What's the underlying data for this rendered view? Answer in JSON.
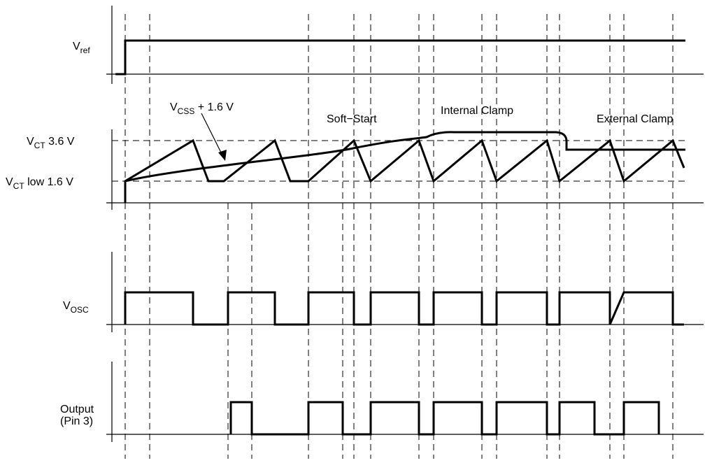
{
  "labels": {
    "vref_main": "V",
    "vref_sub": "ref",
    "vct36_main": "V",
    "vct36_sub": "CT",
    "vct36_rest": " 3.6 V",
    "vctlow_main": "V",
    "vctlow_sub": "CT",
    "vctlow_rest": " low 1.6 V",
    "vosc_main": "V",
    "vosc_sub": "OSC",
    "output_line1": "Output",
    "output_line2": "(Pin 3)"
  },
  "annotations": {
    "vcss_main": "V",
    "vcss_sub": "CSS",
    "vcss_rest": " + 1.6 V",
    "soft_start": "Soft−Start",
    "internal_clamp": "Internal Clamp",
    "external_clamp": "External Clamp"
  },
  "colors": {
    "ink": "#000000",
    "background": "#ffffff"
  }
}
